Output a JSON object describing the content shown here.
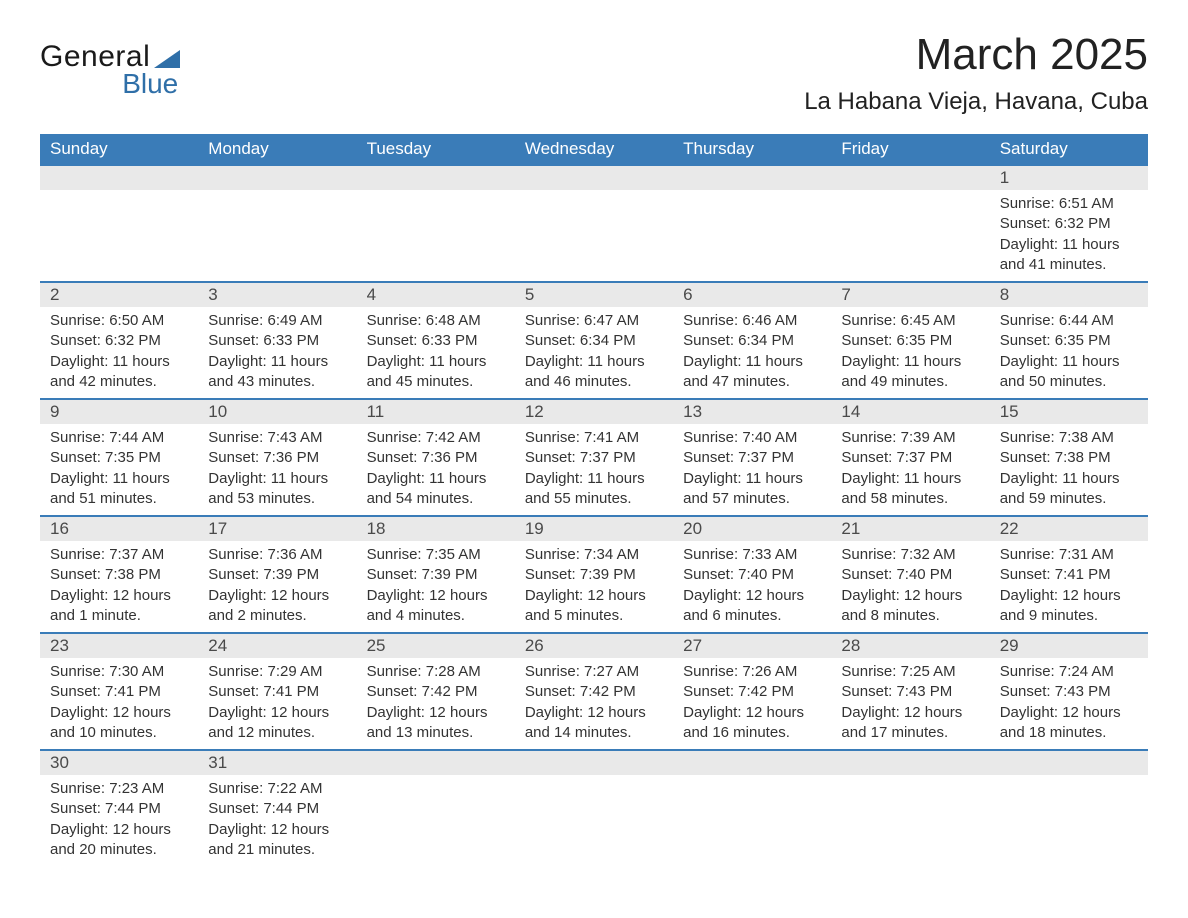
{
  "logo": {
    "word1": "General",
    "word2": "Blue"
  },
  "title": "March 2025",
  "location": "La Habana Vieja, Havana, Cuba",
  "colors": {
    "header_bg": "#3a7cb8",
    "header_text": "#ffffff",
    "daynum_bg": "#e9e9e9",
    "row_divider": "#3a7cb8",
    "body_text": "#333333",
    "logo_accent": "#2f6fa8"
  },
  "day_headers": [
    "Sunday",
    "Monday",
    "Tuesday",
    "Wednesday",
    "Thursday",
    "Friday",
    "Saturday"
  ],
  "weeks": [
    {
      "days": [
        null,
        null,
        null,
        null,
        null,
        null,
        {
          "n": "1",
          "sunrise": "Sunrise: 6:51 AM",
          "sunset": "Sunset: 6:32 PM",
          "daylight": "Daylight: 11 hours and 41 minutes."
        }
      ]
    },
    {
      "days": [
        {
          "n": "2",
          "sunrise": "Sunrise: 6:50 AM",
          "sunset": "Sunset: 6:32 PM",
          "daylight": "Daylight: 11 hours and 42 minutes."
        },
        {
          "n": "3",
          "sunrise": "Sunrise: 6:49 AM",
          "sunset": "Sunset: 6:33 PM",
          "daylight": "Daylight: 11 hours and 43 minutes."
        },
        {
          "n": "4",
          "sunrise": "Sunrise: 6:48 AM",
          "sunset": "Sunset: 6:33 PM",
          "daylight": "Daylight: 11 hours and 45 minutes."
        },
        {
          "n": "5",
          "sunrise": "Sunrise: 6:47 AM",
          "sunset": "Sunset: 6:34 PM",
          "daylight": "Daylight: 11 hours and 46 minutes."
        },
        {
          "n": "6",
          "sunrise": "Sunrise: 6:46 AM",
          "sunset": "Sunset: 6:34 PM",
          "daylight": "Daylight: 11 hours and 47 minutes."
        },
        {
          "n": "7",
          "sunrise": "Sunrise: 6:45 AM",
          "sunset": "Sunset: 6:35 PM",
          "daylight": "Daylight: 11 hours and 49 minutes."
        },
        {
          "n": "8",
          "sunrise": "Sunrise: 6:44 AM",
          "sunset": "Sunset: 6:35 PM",
          "daylight": "Daylight: 11 hours and 50 minutes."
        }
      ]
    },
    {
      "days": [
        {
          "n": "9",
          "sunrise": "Sunrise: 7:44 AM",
          "sunset": "Sunset: 7:35 PM",
          "daylight": "Daylight: 11 hours and 51 minutes."
        },
        {
          "n": "10",
          "sunrise": "Sunrise: 7:43 AM",
          "sunset": "Sunset: 7:36 PM",
          "daylight": "Daylight: 11 hours and 53 minutes."
        },
        {
          "n": "11",
          "sunrise": "Sunrise: 7:42 AM",
          "sunset": "Sunset: 7:36 PM",
          "daylight": "Daylight: 11 hours and 54 minutes."
        },
        {
          "n": "12",
          "sunrise": "Sunrise: 7:41 AM",
          "sunset": "Sunset: 7:37 PM",
          "daylight": "Daylight: 11 hours and 55 minutes."
        },
        {
          "n": "13",
          "sunrise": "Sunrise: 7:40 AM",
          "sunset": "Sunset: 7:37 PM",
          "daylight": "Daylight: 11 hours and 57 minutes."
        },
        {
          "n": "14",
          "sunrise": "Sunrise: 7:39 AM",
          "sunset": "Sunset: 7:37 PM",
          "daylight": "Daylight: 11 hours and 58 minutes."
        },
        {
          "n": "15",
          "sunrise": "Sunrise: 7:38 AM",
          "sunset": "Sunset: 7:38 PM",
          "daylight": "Daylight: 11 hours and 59 minutes."
        }
      ]
    },
    {
      "days": [
        {
          "n": "16",
          "sunrise": "Sunrise: 7:37 AM",
          "sunset": "Sunset: 7:38 PM",
          "daylight": "Daylight: 12 hours and 1 minute."
        },
        {
          "n": "17",
          "sunrise": "Sunrise: 7:36 AM",
          "sunset": "Sunset: 7:39 PM",
          "daylight": "Daylight: 12 hours and 2 minutes."
        },
        {
          "n": "18",
          "sunrise": "Sunrise: 7:35 AM",
          "sunset": "Sunset: 7:39 PM",
          "daylight": "Daylight: 12 hours and 4 minutes."
        },
        {
          "n": "19",
          "sunrise": "Sunrise: 7:34 AM",
          "sunset": "Sunset: 7:39 PM",
          "daylight": "Daylight: 12 hours and 5 minutes."
        },
        {
          "n": "20",
          "sunrise": "Sunrise: 7:33 AM",
          "sunset": "Sunset: 7:40 PM",
          "daylight": "Daylight: 12 hours and 6 minutes."
        },
        {
          "n": "21",
          "sunrise": "Sunrise: 7:32 AM",
          "sunset": "Sunset: 7:40 PM",
          "daylight": "Daylight: 12 hours and 8 minutes."
        },
        {
          "n": "22",
          "sunrise": "Sunrise: 7:31 AM",
          "sunset": "Sunset: 7:41 PM",
          "daylight": "Daylight: 12 hours and 9 minutes."
        }
      ]
    },
    {
      "days": [
        {
          "n": "23",
          "sunrise": "Sunrise: 7:30 AM",
          "sunset": "Sunset: 7:41 PM",
          "daylight": "Daylight: 12 hours and 10 minutes."
        },
        {
          "n": "24",
          "sunrise": "Sunrise: 7:29 AM",
          "sunset": "Sunset: 7:41 PM",
          "daylight": "Daylight: 12 hours and 12 minutes."
        },
        {
          "n": "25",
          "sunrise": "Sunrise: 7:28 AM",
          "sunset": "Sunset: 7:42 PM",
          "daylight": "Daylight: 12 hours and 13 minutes."
        },
        {
          "n": "26",
          "sunrise": "Sunrise: 7:27 AM",
          "sunset": "Sunset: 7:42 PM",
          "daylight": "Daylight: 12 hours and 14 minutes."
        },
        {
          "n": "27",
          "sunrise": "Sunrise: 7:26 AM",
          "sunset": "Sunset: 7:42 PM",
          "daylight": "Daylight: 12 hours and 16 minutes."
        },
        {
          "n": "28",
          "sunrise": "Sunrise: 7:25 AM",
          "sunset": "Sunset: 7:43 PM",
          "daylight": "Daylight: 12 hours and 17 minutes."
        },
        {
          "n": "29",
          "sunrise": "Sunrise: 7:24 AM",
          "sunset": "Sunset: 7:43 PM",
          "daylight": "Daylight: 12 hours and 18 minutes."
        }
      ]
    },
    {
      "days": [
        {
          "n": "30",
          "sunrise": "Sunrise: 7:23 AM",
          "sunset": "Sunset: 7:44 PM",
          "daylight": "Daylight: 12 hours and 20 minutes."
        },
        {
          "n": "31",
          "sunrise": "Sunrise: 7:22 AM",
          "sunset": "Sunset: 7:44 PM",
          "daylight": "Daylight: 12 hours and 21 minutes."
        },
        null,
        null,
        null,
        null,
        null
      ]
    }
  ]
}
